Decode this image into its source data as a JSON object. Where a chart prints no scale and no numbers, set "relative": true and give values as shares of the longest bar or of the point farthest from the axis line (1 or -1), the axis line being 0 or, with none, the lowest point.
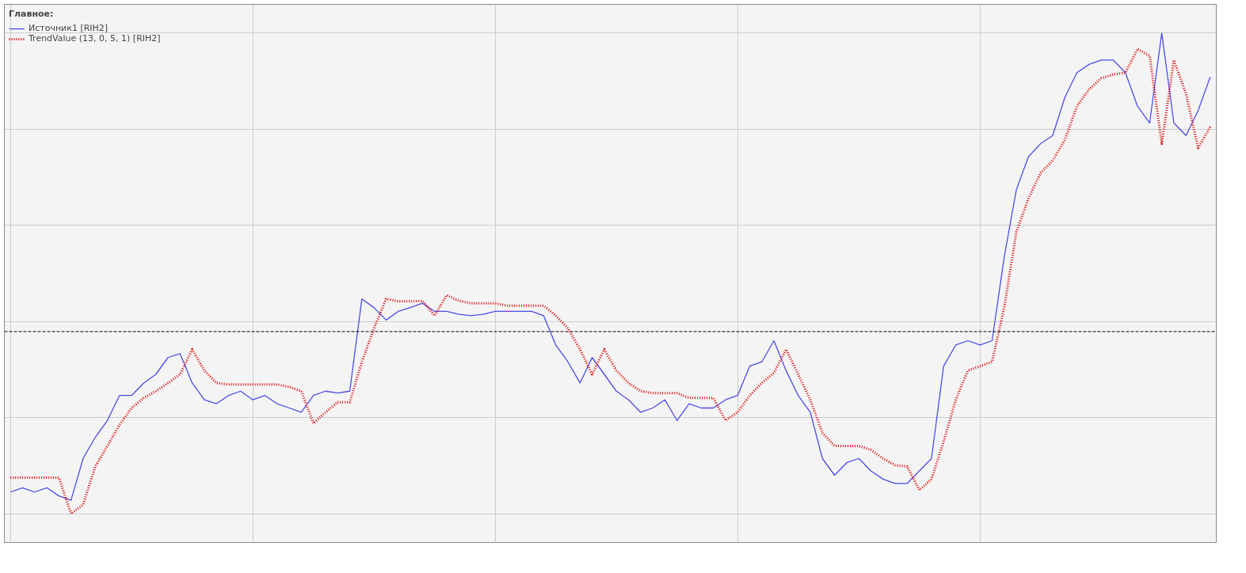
{
  "chart_data": {
    "type": "line",
    "relative": true,
    "legend_title": "Главное:",
    "legend": "top left",
    "grid": true,
    "tick_labels": false,
    "categories": [
      null,
      null,
      null,
      null,
      null,
      null,
      null,
      null,
      null,
      null,
      null,
      null,
      null,
      null,
      null,
      null,
      null,
      null,
      null,
      null,
      null,
      null,
      null,
      null,
      null,
      null,
      null,
      null,
      null,
      null,
      null,
      null,
      null,
      null,
      null,
      null,
      null,
      null,
      null,
      null,
      null,
      null,
      null,
      null,
      null,
      null,
      null,
      null,
      null,
      null,
      null,
      null,
      null,
      null,
      null,
      null,
      null,
      null,
      null,
      null,
      null,
      null,
      null,
      null,
      null,
      null,
      null,
      null,
      null,
      null,
      null,
      null,
      null,
      null,
      null,
      null,
      null,
      null,
      null,
      null,
      null,
      null,
      null,
      null,
      null,
      null,
      null,
      null,
      null,
      null,
      null,
      null,
      null,
      null,
      null,
      null,
      null,
      null,
      null,
      null
    ],
    "series": [
      {
        "name": "Источник1 [RIH2]",
        "color": "#4c4ce6",
        "values": [
          0.045,
          0.054,
          0.045,
          0.054,
          0.037,
          0.028,
          0.115,
          0.159,
          0.194,
          0.246,
          0.246,
          0.272,
          0.29,
          0.325,
          0.333,
          0.272,
          0.237,
          0.229,
          0.246,
          0.255,
          0.237,
          0.246,
          0.229,
          0.22,
          0.211,
          0.246,
          0.255,
          0.251,
          0.255,
          0.447,
          0.429,
          0.403,
          0.421,
          0.429,
          0.438,
          0.421,
          0.421,
          0.415,
          0.412,
          0.415,
          0.421,
          0.421,
          0.421,
          0.421,
          0.412,
          0.351,
          0.316,
          0.272,
          0.325,
          0.29,
          0.255,
          0.237,
          0.211,
          0.22,
          0.237,
          0.194,
          0.229,
          0.22,
          0.22,
          0.237,
          0.246,
          0.307,
          0.316,
          0.36,
          0.298,
          0.246,
          0.211,
          0.115,
          0.08,
          0.106,
          0.115,
          0.089,
          0.072,
          0.063,
          0.063,
          0.089,
          0.115,
          0.307,
          0.351,
          0.36,
          0.351,
          0.36,
          0.534,
          0.674,
          0.743,
          0.77,
          0.787,
          0.866,
          0.918,
          0.935,
          0.944,
          0.944,
          0.918,
          0.848,
          0.813,
          1.0,
          0.813,
          0.787,
          0.839,
          0.909
        ]
      },
      {
        "name": "TrendValue (13, 0, 5, 1) [RIH2]",
        "type": "line",
        "line_style": "dotted",
        "color": "#e00000",
        "values": [
          0.075,
          0.075,
          0.075,
          0.075,
          0.075,
          0.0,
          0.019,
          0.098,
          0.141,
          0.185,
          0.22,
          0.241,
          0.255,
          0.272,
          0.29,
          0.342,
          0.298,
          0.272,
          0.269,
          0.269,
          0.269,
          0.269,
          0.269,
          0.264,
          0.255,
          0.188,
          0.211,
          0.232,
          0.232,
          0.316,
          0.386,
          0.447,
          0.442,
          0.442,
          0.443,
          0.412,
          0.455,
          0.443,
          0.438,
          0.438,
          0.438,
          0.433,
          0.433,
          0.433,
          0.433,
          0.412,
          0.386,
          0.342,
          0.29,
          0.342,
          0.298,
          0.272,
          0.255,
          0.251,
          0.251,
          0.251,
          0.241,
          0.241,
          0.241,
          0.194,
          0.211,
          0.246,
          0.272,
          0.293,
          0.342,
          0.29,
          0.237,
          0.168,
          0.141,
          0.141,
          0.141,
          0.133,
          0.115,
          0.101,
          0.098,
          0.049,
          0.072,
          0.15,
          0.237,
          0.298,
          0.307,
          0.316,
          0.429,
          0.586,
          0.656,
          0.709,
          0.735,
          0.778,
          0.848,
          0.883,
          0.906,
          0.914,
          0.918,
          0.967,
          0.953,
          0.77,
          0.944,
          0.874,
          0.761,
          0.805
        ]
      }
    ],
    "ref_lines": [
      {
        "axis": "y",
        "value": 0.379,
        "color": "#000000",
        "line_style": "dashed"
      }
    ]
  }
}
